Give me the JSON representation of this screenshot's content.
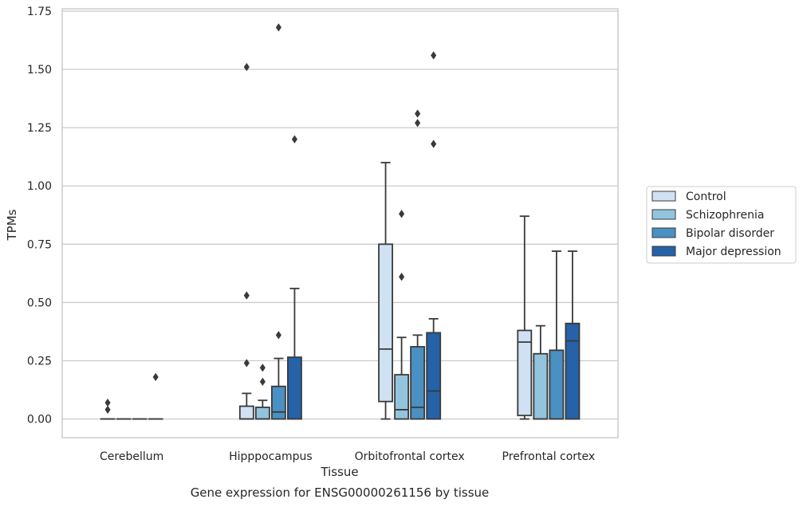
{
  "chart_data": {
    "type": "box",
    "title": "",
    "caption": "Gene expression for ENSG00000261156 by tissue",
    "xlabel": "Tissue",
    "ylabel": "TPMs",
    "ylim": [
      -0.08,
      1.76
    ],
    "yticks": [
      0.0,
      0.25,
      0.5,
      0.75,
      1.0,
      1.25,
      1.5,
      1.75
    ],
    "ytick_labels": [
      "0.00",
      "0.25",
      "0.50",
      "0.75",
      "1.00",
      "1.25",
      "1.50",
      "1.75"
    ],
    "grid": "horizontal",
    "legend_position": "outside-right",
    "categories": [
      "Cerebellum",
      "Hipppocampus",
      "Orbitofrontal cortex",
      "Prefrontal cortex"
    ],
    "series": [
      {
        "name": "Control",
        "color": "#cfe1f2",
        "boxes": [
          {
            "q1": 0.0,
            "median": 0.0,
            "q3": 0.0,
            "whisker_low": 0.0,
            "whisker_high": 0.0,
            "outliers": [
              0.07,
              0.04
            ]
          },
          {
            "q1": 0.0,
            "median": 0.0,
            "q3": 0.055,
            "whisker_low": 0.0,
            "whisker_high": 0.11,
            "outliers": [
              1.51,
              0.53,
              0.24
            ]
          },
          {
            "q1": 0.075,
            "median": 0.3,
            "q3": 0.75,
            "whisker_low": 0.0,
            "whisker_high": 1.1,
            "outliers": []
          },
          {
            "q1": 0.015,
            "median": 0.33,
            "q3": 0.38,
            "whisker_low": 0.0,
            "whisker_high": 0.87,
            "outliers": []
          }
        ]
      },
      {
        "name": "Schizophrenia",
        "color": "#93c4de",
        "boxes": [
          {
            "q1": 0.0,
            "median": 0.0,
            "q3": 0.0,
            "whisker_low": 0.0,
            "whisker_high": 0.0,
            "outliers": []
          },
          {
            "q1": 0.0,
            "median": 0.0,
            "q3": 0.05,
            "whisker_low": 0.0,
            "whisker_high": 0.08,
            "outliers": [
              0.22,
              0.16
            ]
          },
          {
            "q1": 0.0,
            "median": 0.04,
            "q3": 0.19,
            "whisker_low": 0.0,
            "whisker_high": 0.35,
            "outliers": [
              0.88,
              0.61
            ]
          },
          {
            "q1": 0.0,
            "median": 0.0,
            "q3": 0.28,
            "whisker_low": 0.0,
            "whisker_high": 0.4,
            "outliers": []
          }
        ]
      },
      {
        "name": "Bipolar disorder",
        "color": "#4a90c2",
        "boxes": [
          {
            "q1": 0.0,
            "median": 0.0,
            "q3": 0.0,
            "whisker_low": 0.0,
            "whisker_high": 0.0,
            "outliers": []
          },
          {
            "q1": 0.0,
            "median": 0.03,
            "q3": 0.14,
            "whisker_low": 0.0,
            "whisker_high": 0.26,
            "outliers": [
              1.68,
              0.36
            ]
          },
          {
            "q1": 0.0,
            "median": 0.05,
            "q3": 0.31,
            "whisker_low": 0.0,
            "whisker_high": 0.36,
            "outliers": [
              1.31,
              1.27
            ]
          },
          {
            "q1": 0.0,
            "median": 0.0,
            "q3": 0.295,
            "whisker_low": 0.0,
            "whisker_high": 0.72,
            "outliers": []
          }
        ]
      },
      {
        "name": "Major depression",
        "color": "#2562a8",
        "boxes": [
          {
            "q1": 0.0,
            "median": 0.0,
            "q3": 0.0,
            "whisker_low": 0.0,
            "whisker_high": 0.0,
            "outliers": [
              0.18
            ]
          },
          {
            "q1": 0.0,
            "median": 0.0,
            "q3": 0.265,
            "whisker_low": 0.0,
            "whisker_high": 0.56,
            "outliers": [
              1.2
            ]
          },
          {
            "q1": 0.0,
            "median": 0.12,
            "q3": 0.37,
            "whisker_low": 0.0,
            "whisker_high": 0.43,
            "outliers": [
              1.56,
              1.18
            ]
          },
          {
            "q1": 0.0,
            "median": 0.335,
            "q3": 0.41,
            "whisker_low": 0.0,
            "whisker_high": 0.72,
            "outliers": []
          }
        ]
      }
    ]
  }
}
